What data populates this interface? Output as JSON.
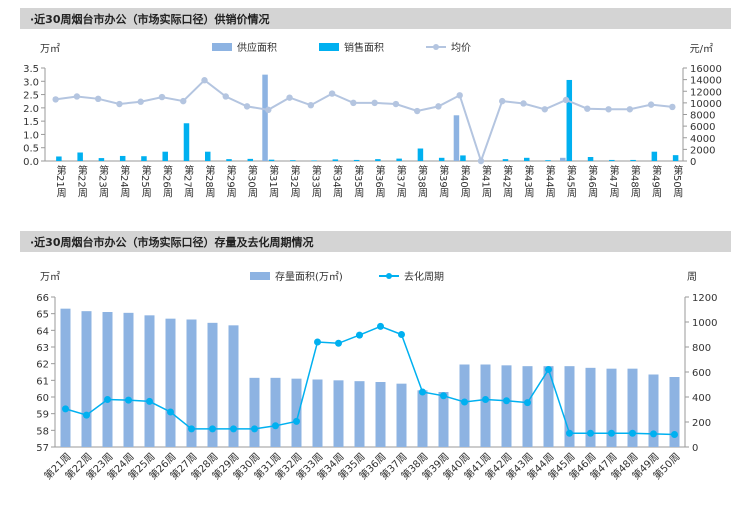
{
  "chart_data": [
    {
      "type": "bar+line",
      "title": "·近30周烟台市办公（市场实际口径）供销价情况",
      "yleft_unit": "万㎡",
      "yright_unit": "元/㎡",
      "ylim_left": [
        0,
        3.5
      ],
      "yticks_left": [
        "0.0",
        "0.5",
        "1.0",
        "1.5",
        "2.0",
        "2.5",
        "3.0",
        "3.5"
      ],
      "ylim_right": [
        0,
        16000
      ],
      "yticks_right": [
        "0",
        "2000",
        "4000",
        "6000",
        "8000",
        "10000",
        "12000",
        "14000",
        "16000"
      ],
      "categories": [
        "第21周",
        "第22周",
        "第23周",
        "第24周",
        "第25周",
        "第26周",
        "第27周",
        "第28周",
        "第29周",
        "第30周",
        "第31周",
        "第32周",
        "第33周",
        "第34周",
        "第35周",
        "第36周",
        "第37周",
        "第38周",
        "第39周",
        "第40周",
        "第41周",
        "第42周",
        "第43周",
        "第44周",
        "第45周",
        "第46周",
        "第47周",
        "第48周",
        "第49周",
        "第50周"
      ],
      "series": [
        {
          "name": "供应面积",
          "kind": "bar",
          "axis": "left",
          "color": "#8db3e2",
          "values": [
            0,
            0,
            0,
            0,
            0,
            0,
            0,
            0,
            0,
            0,
            3.25,
            0,
            0,
            0,
            0,
            0,
            0,
            0,
            0,
            1.72,
            0,
            0,
            0,
            0,
            0.12,
            0,
            0,
            0,
            0,
            0
          ]
        },
        {
          "name": "销售面积",
          "kind": "bar",
          "axis": "left",
          "color": "#00b0f0",
          "values": [
            0.17,
            0.32,
            0.11,
            0.19,
            0.18,
            0.35,
            1.42,
            0.35,
            0.07,
            0.08,
            0.05,
            0.03,
            0.02,
            0.06,
            0.04,
            0.07,
            0.09,
            0.47,
            0.12,
            0.21,
            0,
            0.07,
            0.12,
            0.03,
            3.05,
            0.15,
            0.04,
            0.04,
            0.35,
            0.22
          ]
        },
        {
          "name": "均价",
          "kind": "line",
          "axis": "right",
          "color": "#b4c5e0",
          "values": [
            10600,
            11100,
            10700,
            9800,
            10200,
            11000,
            10300,
            13900,
            11100,
            9400,
            8800,
            10900,
            9600,
            11600,
            10000,
            10000,
            9800,
            8600,
            9400,
            11300,
            0,
            10300,
            9900,
            8900,
            10500,
            9000,
            8900,
            8900,
            9700,
            9300
          ]
        }
      ]
    },
    {
      "type": "bar+line",
      "title": "·近30周烟台市办公（市场实际口径）存量及去化周期情况",
      "yleft_unit": "万㎡",
      "yright_unit": "周",
      "ylim_left": [
        57,
        66
      ],
      "yticks_left": [
        "57",
        "58",
        "59",
        "60",
        "61",
        "62",
        "63",
        "64",
        "65",
        "66"
      ],
      "ylim_right": [
        0,
        1200
      ],
      "yticks_right": [
        "0",
        "200",
        "400",
        "600",
        "800",
        "1000",
        "1200"
      ],
      "categories": [
        "第21周",
        "第22周",
        "第23周",
        "第24周",
        "第25周",
        "第26周",
        "第27周",
        "第28周",
        "第29周",
        "第30周",
        "第31周",
        "第32周",
        "第33周",
        "第34周",
        "第35周",
        "第36周",
        "第37周",
        "第38周",
        "第39周",
        "第40周",
        "第41周",
        "第42周",
        "第43周",
        "第44周",
        "第45周",
        "第46周",
        "第47周",
        "第48周",
        "第49周",
        "第50周"
      ],
      "series": [
        {
          "name": "存量面积(万㎡)",
          "kind": "bar",
          "axis": "left",
          "color": "#8db3e2",
          "values": [
            65.3,
            65.15,
            65.1,
            65.05,
            64.9,
            64.7,
            64.65,
            64.45,
            64.3,
            61.15,
            61.15,
            61.1,
            61.05,
            61.0,
            60.95,
            60.9,
            60.8,
            60.4,
            60.3,
            61.95,
            61.95,
            61.9,
            61.85,
            61.85,
            61.85,
            61.75,
            61.7,
            61.7,
            61.35,
            61.2
          ]
        },
        {
          "name": "去化周期",
          "kind": "line",
          "axis": "right",
          "color": "#00b0f0",
          "values": [
            305,
            255,
            380,
            375,
            365,
            280,
            145,
            145,
            145,
            145,
            170,
            205,
            840,
            830,
            895,
            965,
            900,
            440,
            410,
            360,
            380,
            370,
            355,
            620,
            110,
            110,
            110,
            110,
            105,
            100
          ]
        }
      ]
    }
  ]
}
